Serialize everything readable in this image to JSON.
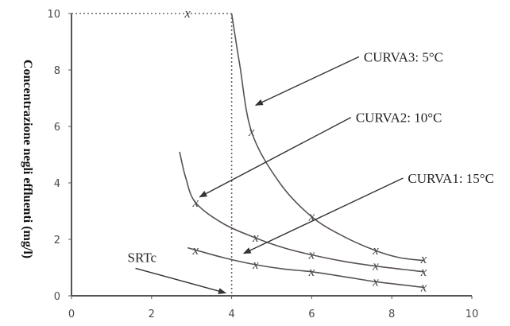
{
  "chart_data": {
    "type": "line",
    "ylabel": "Concentrazione negli effluenti (mg/l)",
    "xlabel": "",
    "xlim": [
      0,
      10
    ],
    "ylim": [
      0,
      10
    ],
    "x_ticks": [
      "0",
      "2",
      "4",
      "6",
      "8",
      "10"
    ],
    "y_ticks": [
      "0",
      "2",
      "4",
      "6",
      "8",
      "10"
    ],
    "srtc_x": 4,
    "max_concentration": 10,
    "series": [
      {
        "name": "CURVA3: 5°C",
        "label": "CURVA3: 5°C",
        "points": [
          {
            "x": 4.5,
            "y": 5.8
          },
          {
            "x": 6.0,
            "y": 2.8
          },
          {
            "x": 7.6,
            "y": 1.6
          },
          {
            "x": 8.8,
            "y": 1.3
          }
        ],
        "curve": [
          [
            4.0,
            10.0
          ],
          [
            4.2,
            8.2
          ],
          [
            4.5,
            5.8
          ],
          [
            5.2,
            4.0
          ],
          [
            6.0,
            2.8
          ],
          [
            6.8,
            2.1
          ],
          [
            7.6,
            1.6
          ],
          [
            8.2,
            1.35
          ],
          [
            8.8,
            1.25
          ]
        ]
      },
      {
        "name": "CURVA2: 10°C",
        "label": "CURVA2: 10°C",
        "points": [
          {
            "x": 3.1,
            "y": 3.3
          },
          {
            "x": 4.6,
            "y": 2.05
          },
          {
            "x": 6.0,
            "y": 1.45
          },
          {
            "x": 7.6,
            "y": 1.05
          },
          {
            "x": 8.8,
            "y": 0.85
          }
        ],
        "curve": [
          [
            2.7,
            5.1
          ],
          [
            2.85,
            4.2
          ],
          [
            3.1,
            3.3
          ],
          [
            3.8,
            2.55
          ],
          [
            4.6,
            2.05
          ],
          [
            5.3,
            1.7
          ],
          [
            6.0,
            1.45
          ],
          [
            6.8,
            1.22
          ],
          [
            7.6,
            1.05
          ],
          [
            8.8,
            0.85
          ]
        ]
      },
      {
        "name": "CURVA1: 15°C",
        "label": "CURVA1: 15°C",
        "points": [
          {
            "x": 3.1,
            "y": 1.6
          },
          {
            "x": 4.6,
            "y": 1.1
          },
          {
            "x": 6.0,
            "y": 0.85
          },
          {
            "x": 7.6,
            "y": 0.5
          },
          {
            "x": 8.8,
            "y": 0.3
          }
        ],
        "curve": [
          [
            2.9,
            1.7
          ],
          [
            3.8,
            1.35
          ],
          [
            4.6,
            1.1
          ],
          [
            5.3,
            0.95
          ],
          [
            6.0,
            0.85
          ],
          [
            6.8,
            0.68
          ],
          [
            7.6,
            0.5
          ],
          [
            8.8,
            0.3
          ]
        ]
      }
    ],
    "extra_points": [
      {
        "x": 2.9,
        "y": 10.0
      }
    ],
    "marker_symbol": "x",
    "annotations": [
      {
        "name": "curva3-annotation",
        "text": "CURVA3:  5°C",
        "x": 7.3,
        "y": 8.3,
        "target_x": 4.6,
        "target_y": 6.75
      },
      {
        "name": "curva2-annotation",
        "text": "CURVA2:  10°C",
        "x": 7.1,
        "y": 6.15,
        "target_x": 3.2,
        "target_y": 3.5
      },
      {
        "name": "curva1-annotation",
        "text": "CURVA1:  15°C",
        "x": 8.4,
        "y": 4.0,
        "target_x": 4.3,
        "target_y": 1.5
      },
      {
        "name": "srtc-annotation",
        "text": "SRTc",
        "x": 1.4,
        "y": 1.2,
        "target_x": 3.85,
        "target_y": 0.1
      }
    ]
  }
}
